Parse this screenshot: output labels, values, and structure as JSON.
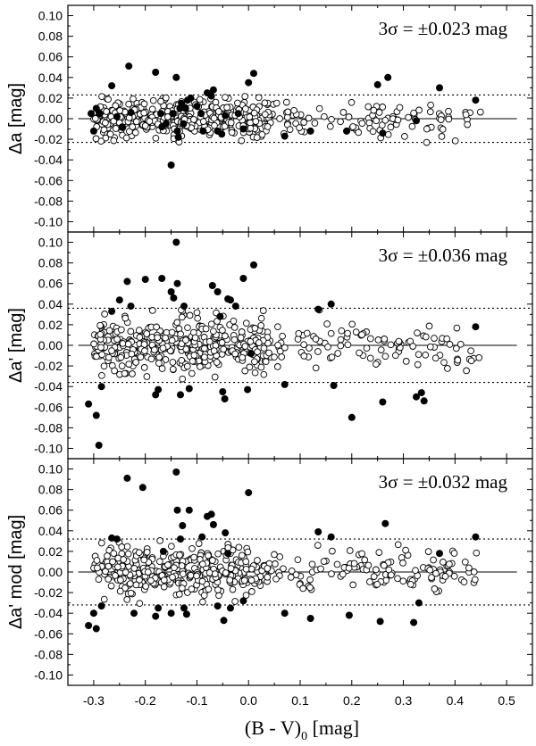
{
  "chart_data": [
    {
      "type": "scatter",
      "panel": "top",
      "ylabel": "Δa [mag]",
      "annotation": "3σ = ±0.023 mag",
      "sigma3": 0.023,
      "xlim": [
        -0.35,
        0.55
      ],
      "ylim": [
        -0.11,
        0.11
      ],
      "yticks": [
        "-0.10",
        "-0.08",
        "-0.06",
        "-0.04",
        "-0.02",
        "0.00",
        "0.02",
        "0.04",
        "0.06",
        "0.08",
        "0.10"
      ],
      "outliers": [
        [
          -0.305,
          0.005
        ],
        [
          -0.3,
          -0.012
        ],
        [
          -0.295,
          0.01
        ],
        [
          -0.288,
          0.005
        ],
        [
          -0.265,
          0.032
        ],
        [
          -0.255,
          0.002
        ],
        [
          -0.245,
          -0.008
        ],
        [
          -0.232,
          0.051
        ],
        [
          -0.228,
          0.006
        ],
        [
          -0.18,
          0.045
        ],
        [
          -0.17,
          0.005
        ],
        [
          -0.168,
          -0.008
        ],
        [
          -0.16,
          -0.005
        ],
        [
          -0.15,
          -0.045
        ],
        [
          -0.147,
          0.005
        ],
        [
          -0.14,
          0.04
        ],
        [
          -0.138,
          -0.012
        ],
        [
          -0.136,
          -0.018
        ],
        [
          -0.133,
          0.01
        ],
        [
          -0.13,
          0.015
        ],
        [
          -0.126,
          -0.005
        ],
        [
          -0.122,
          0.01
        ],
        [
          -0.118,
          0.018
        ],
        [
          -0.112,
          0.02
        ],
        [
          -0.1,
          0.012
        ],
        [
          -0.092,
          0.005
        ],
        [
          -0.088,
          -0.012
        ],
        [
          -0.08,
          0.025
        ],
        [
          -0.072,
          0.022
        ],
        [
          -0.068,
          0.028
        ],
        [
          -0.06,
          -0.012
        ],
        [
          -0.052,
          -0.015
        ],
        [
          -0.045,
          0.003
        ],
        [
          -0.02,
          0.005
        ],
        [
          -0.01,
          -0.01
        ],
        [
          0.01,
          0.044
        ],
        [
          0.0,
          0.035
        ],
        [
          0.07,
          -0.017
        ],
        [
          0.12,
          -0.012
        ],
        [
          0.19,
          -0.012
        ],
        [
          0.25,
          0.033
        ],
        [
          0.26,
          -0.014
        ],
        [
          0.27,
          0.04
        ],
        [
          0.325,
          -0.002
        ],
        [
          0.37,
          0.03
        ],
        [
          0.44,
          0.018
        ]
      ]
    },
    {
      "type": "scatter",
      "panel": "middle",
      "ylabel": "Δa' [mag]",
      "annotation": "3σ = ±0.036 mag",
      "sigma3": 0.036,
      "xlim": [
        -0.35,
        0.55
      ],
      "ylim": [
        -0.11,
        0.11
      ],
      "yticks": [
        "-0.10",
        "-0.08",
        "-0.06",
        "-0.04",
        "-0.02",
        "0.00",
        "0.02",
        "0.04",
        "0.06",
        "0.08",
        "0.10"
      ],
      "outliers": [
        [
          -0.31,
          -0.057
        ],
        [
          -0.295,
          -0.068
        ],
        [
          -0.29,
          -0.097
        ],
        [
          -0.285,
          -0.04
        ],
        [
          -0.265,
          0.033
        ],
        [
          -0.25,
          0.044
        ],
        [
          -0.235,
          0.062
        ],
        [
          -0.228,
          0.038
        ],
        [
          -0.2,
          0.064
        ],
        [
          -0.18,
          -0.048
        ],
        [
          -0.175,
          -0.043
        ],
        [
          -0.168,
          0.065
        ],
        [
          -0.15,
          0.052
        ],
        [
          -0.145,
          0.046
        ],
        [
          -0.14,
          0.1
        ],
        [
          -0.138,
          0.06
        ],
        [
          -0.132,
          -0.048
        ],
        [
          -0.125,
          0.038
        ],
        [
          -0.115,
          -0.042
        ],
        [
          -0.07,
          0.058
        ],
        [
          -0.06,
          0.052
        ],
        [
          -0.055,
          0.028
        ],
        [
          -0.05,
          -0.045
        ],
        [
          -0.046,
          -0.052
        ],
        [
          -0.04,
          0.045
        ],
        [
          -0.035,
          0.044
        ],
        [
          -0.025,
          0.038
        ],
        [
          -0.01,
          0.065
        ],
        [
          -0.002,
          -0.043
        ],
        [
          0.005,
          -0.008
        ],
        [
          0.01,
          0.078
        ],
        [
          0.07,
          -0.038
        ],
        [
          0.135,
          0.035
        ],
        [
          0.16,
          0.04
        ],
        [
          0.165,
          -0.039
        ],
        [
          0.2,
          -0.07
        ],
        [
          0.26,
          -0.055
        ],
        [
          0.325,
          -0.05
        ],
        [
          0.335,
          -0.046
        ],
        [
          0.34,
          -0.054
        ],
        [
          0.44,
          0.018
        ]
      ]
    },
    {
      "type": "scatter",
      "panel": "bottom",
      "ylabel": "Δa' mod [mag]",
      "annotation": "3σ = ±0.032 mag",
      "sigma3": 0.032,
      "xlim": [
        -0.35,
        0.55
      ],
      "ylim": [
        -0.11,
        0.11
      ],
      "yticks": [
        "-0.10",
        "-0.08",
        "-0.06",
        "-0.04",
        "-0.02",
        "0.00",
        "0.02",
        "0.04",
        "0.06",
        "0.08",
        "0.10"
      ],
      "outliers": [
        [
          -0.31,
          -0.052
        ],
        [
          -0.3,
          -0.04
        ],
        [
          -0.295,
          -0.055
        ],
        [
          -0.285,
          -0.033
        ],
        [
          -0.265,
          0.033
        ],
        [
          -0.255,
          0.032
        ],
        [
          -0.235,
          0.091
        ],
        [
          -0.222,
          -0.04
        ],
        [
          -0.205,
          0.082
        ],
        [
          -0.18,
          -0.043
        ],
        [
          -0.175,
          -0.035
        ],
        [
          -0.165,
          0.02
        ],
        [
          -0.15,
          -0.04
        ],
        [
          -0.14,
          0.097
        ],
        [
          -0.138,
          0.06
        ],
        [
          -0.132,
          0.032
        ],
        [
          -0.128,
          0.045
        ],
        [
          -0.125,
          -0.035
        ],
        [
          -0.12,
          -0.041
        ],
        [
          -0.115,
          0.06
        ],
        [
          -0.09,
          0.034
        ],
        [
          -0.08,
          0.054
        ],
        [
          -0.072,
          0.056
        ],
        [
          -0.068,
          0.046
        ],
        [
          -0.06,
          -0.033
        ],
        [
          -0.048,
          -0.047
        ],
        [
          -0.045,
          0.038
        ],
        [
          -0.04,
          0.018
        ],
        [
          -0.035,
          -0.035
        ],
        [
          -0.01,
          -0.028
        ],
        [
          0.0,
          0.077
        ],
        [
          0.07,
          -0.04
        ],
        [
          0.12,
          -0.045
        ],
        [
          0.135,
          0.039
        ],
        [
          0.16,
          0.034
        ],
        [
          0.195,
          -0.042
        ],
        [
          0.255,
          -0.048
        ],
        [
          0.265,
          0.047
        ],
        [
          0.32,
          -0.049
        ],
        [
          0.33,
          -0.03
        ],
        [
          0.37,
          0.018
        ],
        [
          0.44,
          0.034
        ]
      ]
    }
  ],
  "xaxis": {
    "label_main": "(B - V)",
    "label_sub": "0",
    "label_tail": " [mag]",
    "ticks": [
      "-0.3",
      "-0.2",
      "-0.1",
      "0.0",
      "0.1",
      "0.2",
      "0.3",
      "0.4",
      "0.5"
    ]
  }
}
